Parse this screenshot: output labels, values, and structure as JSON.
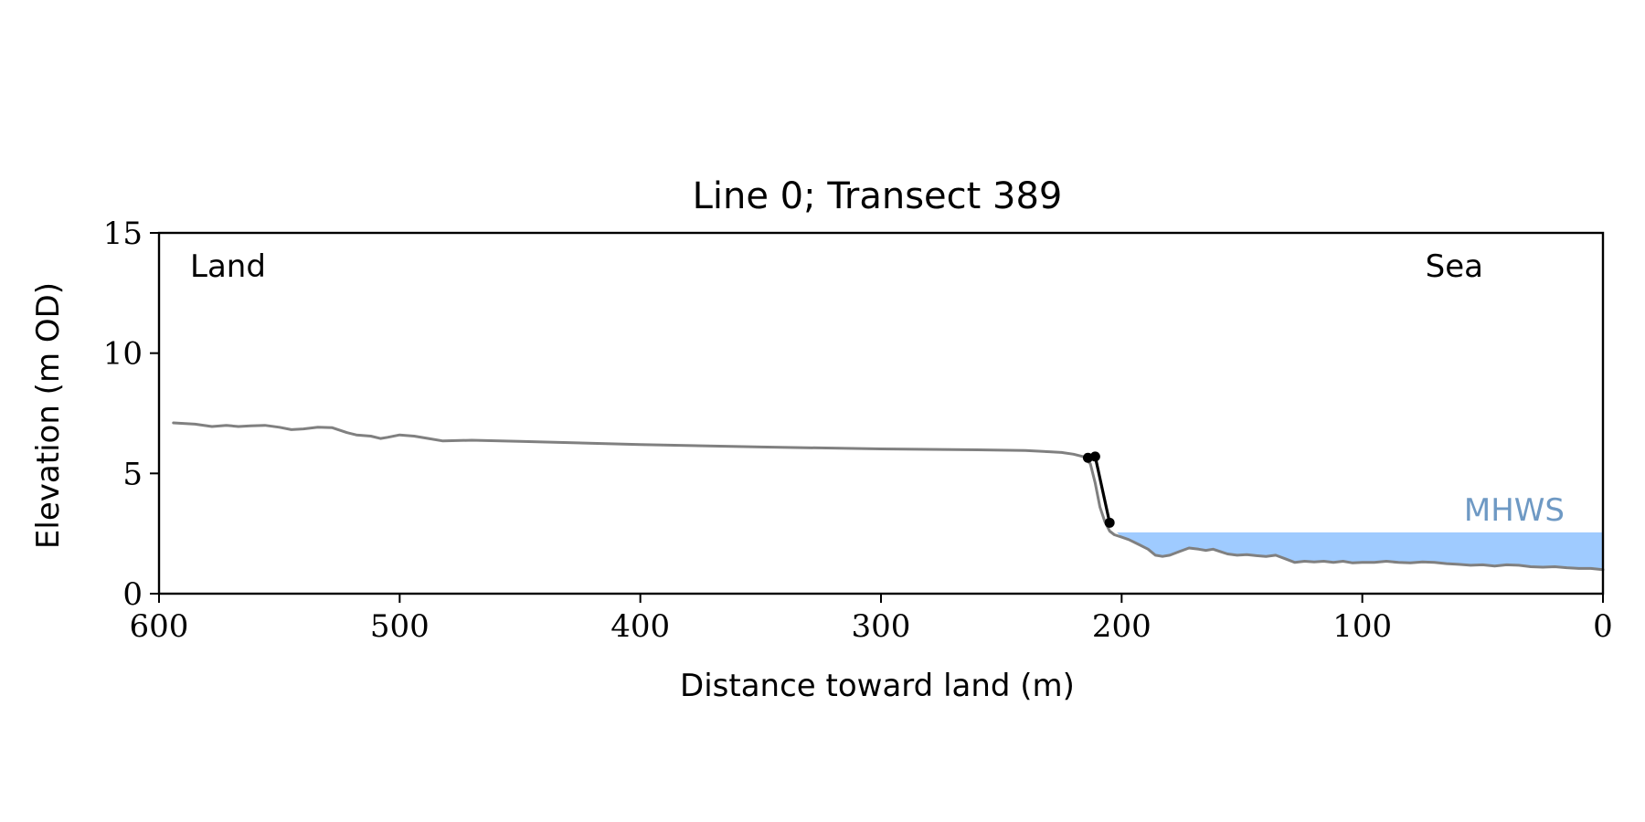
{
  "chart_data": {
    "type": "line",
    "title": "Line 0; Transect 389",
    "xlabel": "Distance toward land (m)",
    "ylabel": "Elevation (m OD)",
    "xlim": [
      600,
      0
    ],
    "ylim": [
      0,
      15
    ],
    "x_inverted": true,
    "xticks": [
      600,
      500,
      400,
      300,
      200,
      100,
      0
    ],
    "yticks": [
      0,
      5,
      10,
      15
    ],
    "grid": false,
    "annotations": {
      "left": "Land",
      "right": "Sea"
    },
    "mhws": {
      "label": "MHWS",
      "level": 2.55,
      "x_range": [
        0,
        202
      ],
      "fill_color": "#9fcbff",
      "label_color": "#6e99c4"
    },
    "series": [
      {
        "color": "#808080",
        "x": [
          594,
          585,
          578,
          572,
          567,
          562,
          556,
          550,
          545,
          540,
          534,
          528,
          522,
          518,
          512,
          508,
          505,
          500,
          494,
          488,
          482,
          470,
          450,
          400,
          350,
          300,
          260,
          240,
          230,
          225,
          220,
          216,
          213,
          211,
          209,
          207,
          205,
          203,
          200,
          197,
          193,
          189,
          186,
          183,
          180,
          176,
          172,
          168,
          165,
          162,
          159,
          156,
          152,
          148,
          144,
          140,
          136,
          132,
          128,
          124,
          120,
          116,
          112,
          108,
          104,
          100,
          95,
          90,
          85,
          80,
          75,
          70,
          65,
          60,
          55,
          50,
          45,
          40,
          35,
          30,
          25,
          20,
          15,
          10,
          5,
          0
        ],
        "y": [
          7.1,
          7.05,
          6.95,
          7.0,
          6.95,
          6.98,
          7.0,
          6.92,
          6.82,
          6.85,
          6.92,
          6.9,
          6.7,
          6.6,
          6.55,
          6.45,
          6.5,
          6.6,
          6.55,
          6.45,
          6.35,
          6.38,
          6.33,
          6.2,
          6.1,
          6.02,
          5.98,
          5.95,
          5.9,
          5.87,
          5.8,
          5.7,
          5.4,
          4.6,
          3.6,
          3.0,
          2.6,
          2.45,
          2.35,
          2.25,
          2.05,
          1.85,
          1.6,
          1.55,
          1.6,
          1.75,
          1.9,
          1.85,
          1.8,
          1.85,
          1.75,
          1.65,
          1.6,
          1.62,
          1.58,
          1.55,
          1.6,
          1.45,
          1.3,
          1.35,
          1.32,
          1.35,
          1.3,
          1.35,
          1.28,
          1.3,
          1.3,
          1.35,
          1.3,
          1.28,
          1.32,
          1.3,
          1.25,
          1.22,
          1.18,
          1.2,
          1.15,
          1.2,
          1.18,
          1.12,
          1.1,
          1.12,
          1.08,
          1.05,
          1.05,
          1.0
        ]
      },
      {
        "color": "#000000",
        "markers": true,
        "x": [
          214,
          211,
          205
        ],
        "y": [
          5.65,
          5.7,
          2.95
        ]
      }
    ]
  }
}
